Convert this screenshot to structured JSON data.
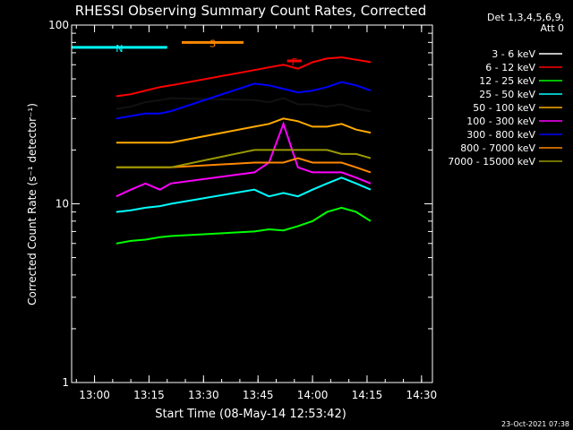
{
  "chart_data": {
    "type": "line",
    "title": "RHESSI Observing Summary Count Rates, Corrected",
    "xlabel": "Start Time (08-May-14 12:53:42)",
    "ylabel": "Corrected Count Rate (s⁻¹ detector⁻¹)",
    "yscale": "log",
    "ylim": [
      1,
      100
    ],
    "xlim": [
      "12:53:42",
      "14:33:00"
    ],
    "x_ticks": [
      "13:00",
      "13:15",
      "13:30",
      "13:45",
      "14:00",
      "14:15",
      "14:30"
    ],
    "y_ticks": [
      "1",
      "10",
      "100"
    ],
    "legend_header": [
      "Det 1,3,4,5,6,9,",
      "Att 0"
    ],
    "legend_position": "top-right",
    "timestamp": "23-Oct-2021 07:38",
    "series": [
      {
        "name": "3 - 6 keV",
        "color": "#000000",
        "x": [
          "13:06",
          "13:10",
          "13:14",
          "13:18",
          "13:21",
          "13:44",
          "13:48",
          "13:52",
          "13:56",
          "14:00",
          "14:04",
          "14:08",
          "14:12",
          "14:16"
        ],
        "y": [
          34,
          35,
          37,
          38,
          39,
          38,
          37,
          39,
          36,
          36,
          35,
          36,
          34,
          33
        ]
      },
      {
        "name": "6 - 12 keV",
        "color": "#ff0000",
        "x": [
          "13:06",
          "13:10",
          "13:14",
          "13:18",
          "13:21",
          "13:44",
          "13:48",
          "13:52",
          "13:56",
          "14:00",
          "14:04",
          "14:08",
          "14:12",
          "14:16"
        ],
        "y": [
          40,
          41,
          43,
          45,
          46,
          56,
          58,
          60,
          57,
          62,
          65,
          66,
          64,
          62
        ]
      },
      {
        "name": "12 - 25 keV",
        "color": "#00ff00",
        "x": [
          "13:06",
          "13:10",
          "13:14",
          "13:18",
          "13:21",
          "13:44",
          "13:48",
          "13:52",
          "13:56",
          "14:00",
          "14:04",
          "14:08",
          "14:12",
          "14:16"
        ],
        "y": [
          6,
          6.2,
          6.3,
          6.5,
          6.6,
          7,
          7.2,
          7.1,
          7.5,
          8,
          9,
          9.5,
          9,
          8
        ]
      },
      {
        "name": "25 - 50 keV",
        "color": "#00ffff",
        "x": [
          "13:06",
          "13:10",
          "13:14",
          "13:18",
          "13:21",
          "13:44",
          "13:48",
          "13:52",
          "13:56",
          "14:00",
          "14:04",
          "14:08",
          "14:12",
          "14:16"
        ],
        "y": [
          9,
          9.2,
          9.5,
          9.7,
          10,
          12,
          11,
          11.5,
          11,
          12,
          13,
          14,
          13,
          12
        ]
      },
      {
        "name": "50 - 100 keV",
        "color": "#ffaa00",
        "x": [
          "13:06",
          "13:10",
          "13:14",
          "13:18",
          "13:21",
          "13:44",
          "13:48",
          "13:52",
          "13:56",
          "14:00",
          "14:04",
          "14:08",
          "14:12",
          "14:16"
        ],
        "y": [
          22,
          22,
          22,
          22,
          22,
          27,
          28,
          30,
          29,
          27,
          27,
          28,
          26,
          25
        ]
      },
      {
        "name": "100 - 300 keV",
        "color": "#ff00ff",
        "x": [
          "13:06",
          "13:10",
          "13:14",
          "13:18",
          "13:21",
          "13:44",
          "13:48",
          "13:52",
          "13:56",
          "14:00",
          "14:04",
          "14:08",
          "14:12",
          "14:16"
        ],
        "y": [
          11,
          12,
          13,
          12,
          13,
          15,
          17,
          28,
          16,
          15,
          15,
          15,
          14,
          13
        ]
      },
      {
        "name": "300 - 800 keV",
        "color": "#0000ff",
        "x": [
          "13:06",
          "13:10",
          "13:14",
          "13:18",
          "13:21",
          "13:44",
          "13:48",
          "13:52",
          "13:56",
          "14:00",
          "14:04",
          "14:08",
          "14:12",
          "14:16"
        ],
        "y": [
          30,
          31,
          32,
          32,
          33,
          47,
          46,
          44,
          42,
          43,
          45,
          48,
          46,
          43
        ]
      },
      {
        "name": "800 - 7000 keV",
        "color": "#ff8800",
        "x": [
          "13:06",
          "13:10",
          "13:14",
          "13:18",
          "13:21",
          "13:44",
          "13:48",
          "13:52",
          "13:56",
          "14:00",
          "14:04",
          "14:08",
          "14:12",
          "14:16"
        ],
        "y": [
          16,
          16,
          16,
          16,
          16,
          17,
          17,
          17,
          18,
          17,
          17,
          17,
          16,
          15
        ]
      },
      {
        "name": "7000 - 15000 keV",
        "color": "#999900",
        "x": [
          "13:06",
          "13:10",
          "13:14",
          "13:18",
          "13:21",
          "13:44",
          "13:48",
          "13:52",
          "13:56",
          "14:00",
          "14:04",
          "14:08",
          "14:12",
          "14:16"
        ],
        "y": [
          16,
          16,
          16,
          16,
          16,
          20,
          20,
          20,
          20,
          20,
          20,
          19,
          19,
          18
        ]
      }
    ],
    "flags": [
      {
        "label": "N",
        "color": "#00ffff",
        "x": [
          "12:53:42",
          "13:20:00"
        ],
        "level": 75
      },
      {
        "label": "S",
        "color": "#ff8800",
        "x": [
          "13:24:00",
          "13:41:00"
        ],
        "level": 80
      },
      {
        "label": "F",
        "color": "#ff0000",
        "x": [
          "13:53:00",
          "13:57:00"
        ],
        "level": 63
      }
    ]
  }
}
